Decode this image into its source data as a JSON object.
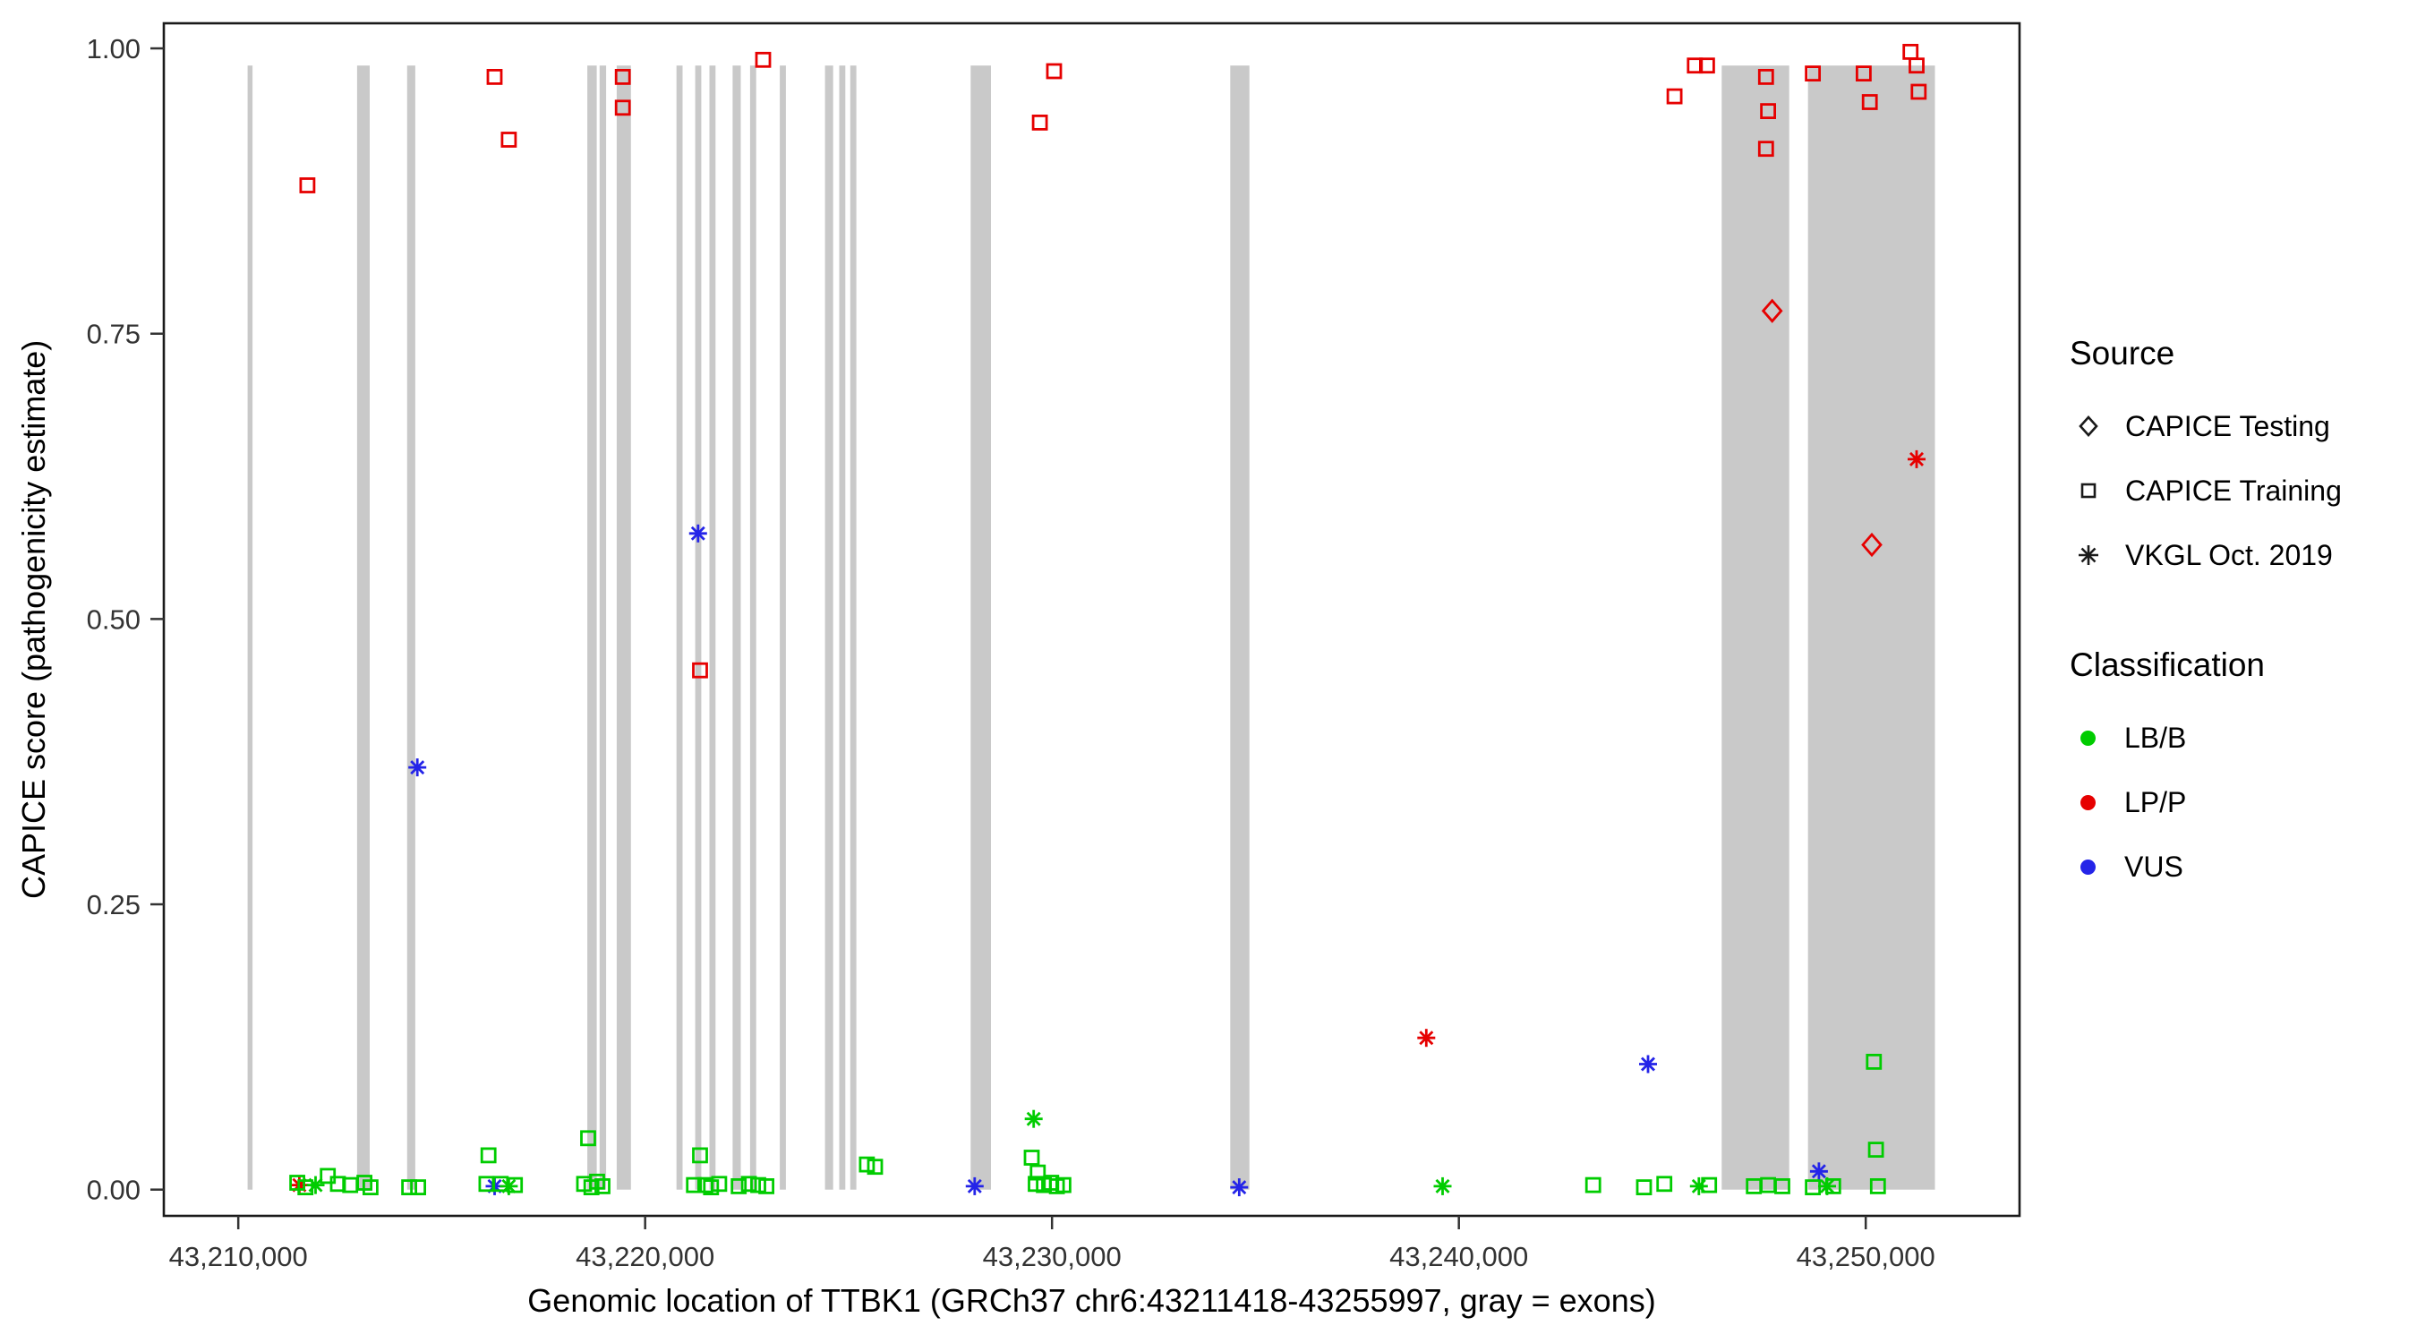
{
  "chart_data": {
    "type": "scatter",
    "title": "",
    "xlabel": "Genomic location of TTBK1 (GRCh37 chr6:43211418-43255997, gray = exons)",
    "ylabel": "CAPICE score (pathogenicity estimate)",
    "xlim": [
      43208170,
      43253780
    ],
    "ylim": [
      -0.023,
      1.022
    ],
    "grid": false,
    "panel_border_color": "#1a1a1a",
    "axis_tick_color": "#333333",
    "exon_color": "#c9c9c9",
    "exon_score_range": [
      0,
      0.985
    ],
    "x_ticks": [
      {
        "value": 43210000,
        "label": "43,210,000"
      },
      {
        "value": 43220000,
        "label": "43,220,000"
      },
      {
        "value": 43230000,
        "label": "43,230,000"
      },
      {
        "value": 43240000,
        "label": "43,240,000"
      },
      {
        "value": 43250000,
        "label": "43,250,000"
      }
    ],
    "y_ticks": [
      {
        "value": 0.0,
        "label": "0.00"
      },
      {
        "value": 0.25,
        "label": "0.25"
      },
      {
        "value": 0.5,
        "label": "0.50"
      },
      {
        "value": 0.75,
        "label": "0.75"
      },
      {
        "value": 1.0,
        "label": "1.00"
      }
    ],
    "exons": [
      [
        43210230,
        43210350
      ],
      [
        43212920,
        43213230
      ],
      [
        43214150,
        43214350
      ],
      [
        43218580,
        43218810
      ],
      [
        43218880,
        43219040
      ],
      [
        43219300,
        43219650
      ],
      [
        43220770,
        43220920
      ],
      [
        43221230,
        43221380
      ],
      [
        43221580,
        43221730
      ],
      [
        43222150,
        43222350
      ],
      [
        43222580,
        43222730
      ],
      [
        43223310,
        43223460
      ],
      [
        43224420,
        43224620
      ],
      [
        43224770,
        43224920
      ],
      [
        43225040,
        43225190
      ],
      [
        43228000,
        43228500
      ],
      [
        43234380,
        43234850
      ],
      [
        43246460,
        43248120
      ],
      [
        43248580,
        43251700
      ]
    ],
    "class_colors": {
      "LB/B": "#00cc00",
      "LP/P": "#e60000",
      "VUS": "#2424e8"
    },
    "legend": {
      "source": {
        "title": "Source",
        "items": [
          {
            "label": "CAPICE Testing",
            "shape": "diamond"
          },
          {
            "label": "CAPICE Training",
            "shape": "square"
          },
          {
            "label": "VKGL Oct. 2019",
            "shape": "asterisk"
          }
        ]
      },
      "classification": {
        "title": "Classification",
        "items": [
          {
            "label": "LB/B",
            "color_key": "LB/B"
          },
          {
            "label": "LP/P",
            "color_key": "LP/P"
          },
          {
            "label": "VUS",
            "color_key": "VUS"
          }
        ]
      }
    },
    "points": [
      {
        "x": 43211700,
        "y": 0.88,
        "class": "LP/P",
        "source": "CAPICE Training",
        "shape": "square"
      },
      {
        "x": 43216300,
        "y": 0.975,
        "class": "LP/P",
        "source": "CAPICE Training",
        "shape": "square"
      },
      {
        "x": 43216650,
        "y": 0.92,
        "class": "LP/P",
        "source": "CAPICE Training",
        "shape": "square"
      },
      {
        "x": 43219450,
        "y": 0.975,
        "class": "LP/P",
        "source": "CAPICE Training",
        "shape": "square"
      },
      {
        "x": 43219450,
        "y": 0.948,
        "class": "LP/P",
        "source": "CAPICE Training",
        "shape": "square"
      },
      {
        "x": 43222900,
        "y": 0.99,
        "class": "LP/P",
        "source": "CAPICE Training",
        "shape": "square"
      },
      {
        "x": 43221350,
        "y": 0.455,
        "class": "LP/P",
        "source": "CAPICE Training",
        "shape": "square"
      },
      {
        "x": 43229700,
        "y": 0.935,
        "class": "LP/P",
        "source": "CAPICE Training",
        "shape": "square"
      },
      {
        "x": 43230050,
        "y": 0.98,
        "class": "LP/P",
        "source": "CAPICE Training",
        "shape": "square"
      },
      {
        "x": 43245300,
        "y": 0.958,
        "class": "LP/P",
        "source": "CAPICE Training",
        "shape": "square"
      },
      {
        "x": 43245800,
        "y": 0.985,
        "class": "LP/P",
        "source": "CAPICE Training",
        "shape": "square"
      },
      {
        "x": 43246100,
        "y": 0.985,
        "class": "LP/P",
        "source": "CAPICE Training",
        "shape": "square"
      },
      {
        "x": 43247550,
        "y": 0.975,
        "class": "LP/P",
        "source": "CAPICE Training",
        "shape": "square"
      },
      {
        "x": 43247600,
        "y": 0.945,
        "class": "LP/P",
        "source": "CAPICE Training",
        "shape": "square"
      },
      {
        "x": 43247550,
        "y": 0.912,
        "class": "LP/P",
        "source": "CAPICE Training",
        "shape": "square"
      },
      {
        "x": 43248700,
        "y": 0.978,
        "class": "LP/P",
        "source": "CAPICE Training",
        "shape": "square"
      },
      {
        "x": 43249950,
        "y": 0.978,
        "class": "LP/P",
        "source": "CAPICE Training",
        "shape": "square"
      },
      {
        "x": 43250100,
        "y": 0.953,
        "class": "LP/P",
        "source": "CAPICE Training",
        "shape": "square"
      },
      {
        "x": 43251100,
        "y": 0.997,
        "class": "LP/P",
        "source": "CAPICE Training",
        "shape": "square"
      },
      {
        "x": 43251250,
        "y": 0.985,
        "class": "LP/P",
        "source": "CAPICE Training",
        "shape": "square"
      },
      {
        "x": 43251300,
        "y": 0.962,
        "class": "LP/P",
        "source": "CAPICE Training",
        "shape": "square"
      },
      {
        "x": 43247700,
        "y": 0.77,
        "class": "LP/P",
        "source": "CAPICE Testing",
        "shape": "diamond"
      },
      {
        "x": 43250150,
        "y": 0.565,
        "class": "LP/P",
        "source": "CAPICE Testing",
        "shape": "diamond"
      },
      {
        "x": 43214400,
        "y": 0.37,
        "class": "VUS",
        "source": "VKGL Oct. 2019",
        "shape": "asterisk"
      },
      {
        "x": 43221300,
        "y": 0.575,
        "class": "VUS",
        "source": "VKGL Oct. 2019",
        "shape": "asterisk"
      },
      {
        "x": 43251250,
        "y": 0.64,
        "class": "LP/P",
        "source": "VKGL Oct. 2019",
        "shape": "asterisk"
      },
      {
        "x": 43239200,
        "y": 0.133,
        "class": "LP/P",
        "source": "VKGL Oct. 2019",
        "shape": "asterisk"
      },
      {
        "x": 43211500,
        "y": 0.004,
        "class": "LP/P",
        "source": "VKGL Oct. 2019",
        "shape": "asterisk"
      },
      {
        "x": 43216300,
        "y": 0.003,
        "class": "VUS",
        "source": "VKGL Oct. 2019",
        "shape": "asterisk"
      },
      {
        "x": 43228100,
        "y": 0.003,
        "class": "VUS",
        "source": "VKGL Oct. 2019",
        "shape": "asterisk"
      },
      {
        "x": 43234600,
        "y": 0.002,
        "class": "VUS",
        "source": "VKGL Oct. 2019",
        "shape": "asterisk"
      },
      {
        "x": 43244650,
        "y": 0.11,
        "class": "VUS",
        "source": "VKGL Oct. 2019",
        "shape": "asterisk"
      },
      {
        "x": 43248850,
        "y": 0.016,
        "class": "VUS",
        "source": "VKGL Oct. 2019",
        "shape": "asterisk"
      },
      {
        "x": 43239600,
        "y": 0.003,
        "class": "LB/B",
        "source": "VKGL Oct. 2019",
        "shape": "asterisk"
      },
      {
        "x": 43211900,
        "y": 0.004,
        "class": "LB/B",
        "source": "VKGL Oct. 2019",
        "shape": "asterisk"
      },
      {
        "x": 43216650,
        "y": 0.003,
        "class": "LB/B",
        "source": "VKGL Oct. 2019",
        "shape": "asterisk"
      },
      {
        "x": 43229550,
        "y": 0.062,
        "class": "LB/B",
        "source": "VKGL Oct. 2019",
        "shape": "asterisk"
      },
      {
        "x": 43245900,
        "y": 0.003,
        "class": "LB/B",
        "source": "VKGL Oct. 2019",
        "shape": "asterisk"
      },
      {
        "x": 43249050,
        "y": 0.003,
        "class": "LB/B",
        "source": "VKGL Oct. 2019",
        "shape": "asterisk"
      },
      {
        "x": 43211450,
        "y": 0.006,
        "class": "LB/B",
        "source": "CAPICE Training",
        "shape": "square"
      },
      {
        "x": 43211650,
        "y": 0.002,
        "class": "LB/B",
        "source": "CAPICE Training",
        "shape": "square"
      },
      {
        "x": 43212200,
        "y": 0.012,
        "class": "LB/B",
        "source": "CAPICE Training",
        "shape": "square"
      },
      {
        "x": 43212450,
        "y": 0.005,
        "class": "LB/B",
        "source": "CAPICE Training",
        "shape": "square"
      },
      {
        "x": 43212750,
        "y": 0.004,
        "class": "LB/B",
        "source": "CAPICE Training",
        "shape": "square"
      },
      {
        "x": 43213100,
        "y": 0.006,
        "class": "LB/B",
        "source": "CAPICE Training",
        "shape": "square"
      },
      {
        "x": 43213250,
        "y": 0.002,
        "class": "LB/B",
        "source": "CAPICE Training",
        "shape": "square"
      },
      {
        "x": 43214200,
        "y": 0.002,
        "class": "LB/B",
        "source": "CAPICE Training",
        "shape": "square"
      },
      {
        "x": 43214420,
        "y": 0.002,
        "class": "LB/B",
        "source": "CAPICE Training",
        "shape": "square"
      },
      {
        "x": 43216150,
        "y": 0.03,
        "class": "LB/B",
        "source": "CAPICE Training",
        "shape": "square"
      },
      {
        "x": 43216100,
        "y": 0.005,
        "class": "LB/B",
        "source": "CAPICE Training",
        "shape": "square"
      },
      {
        "x": 43216450,
        "y": 0.005,
        "class": "LB/B",
        "source": "CAPICE Training",
        "shape": "square"
      },
      {
        "x": 43216800,
        "y": 0.004,
        "class": "LB/B",
        "source": "CAPICE Training",
        "shape": "square"
      },
      {
        "x": 43218600,
        "y": 0.045,
        "class": "LB/B",
        "source": "CAPICE Training",
        "shape": "square"
      },
      {
        "x": 43218500,
        "y": 0.005,
        "class": "LB/B",
        "source": "CAPICE Training",
        "shape": "square"
      },
      {
        "x": 43218680,
        "y": 0.002,
        "class": "LB/B",
        "source": "CAPICE Training",
        "shape": "square"
      },
      {
        "x": 43218820,
        "y": 0.007,
        "class": "LB/B",
        "source": "CAPICE Training",
        "shape": "square"
      },
      {
        "x": 43218950,
        "y": 0.003,
        "class": "LB/B",
        "source": "CAPICE Training",
        "shape": "square"
      },
      {
        "x": 43221350,
        "y": 0.03,
        "class": "LB/B",
        "source": "CAPICE Training",
        "shape": "square"
      },
      {
        "x": 43221200,
        "y": 0.004,
        "class": "LB/B",
        "source": "CAPICE Training",
        "shape": "square"
      },
      {
        "x": 43221480,
        "y": 0.004,
        "class": "LB/B",
        "source": "CAPICE Training",
        "shape": "square"
      },
      {
        "x": 43221620,
        "y": 0.002,
        "class": "LB/B",
        "source": "CAPICE Training",
        "shape": "square"
      },
      {
        "x": 43221820,
        "y": 0.005,
        "class": "LB/B",
        "source": "CAPICE Training",
        "shape": "square"
      },
      {
        "x": 43222300,
        "y": 0.003,
        "class": "LB/B",
        "source": "CAPICE Training",
        "shape": "square"
      },
      {
        "x": 43222550,
        "y": 0.005,
        "class": "LB/B",
        "source": "CAPICE Training",
        "shape": "square"
      },
      {
        "x": 43222780,
        "y": 0.004,
        "class": "LB/B",
        "source": "CAPICE Training",
        "shape": "square"
      },
      {
        "x": 43222980,
        "y": 0.003,
        "class": "LB/B",
        "source": "CAPICE Training",
        "shape": "square"
      },
      {
        "x": 43225450,
        "y": 0.022,
        "class": "LB/B",
        "source": "CAPICE Training",
        "shape": "square"
      },
      {
        "x": 43225650,
        "y": 0.02,
        "class": "LB/B",
        "source": "CAPICE Training",
        "shape": "square"
      },
      {
        "x": 43229500,
        "y": 0.028,
        "class": "LB/B",
        "source": "CAPICE Training",
        "shape": "square"
      },
      {
        "x": 43229650,
        "y": 0.015,
        "class": "LB/B",
        "source": "CAPICE Training",
        "shape": "square"
      },
      {
        "x": 43229600,
        "y": 0.005,
        "class": "LB/B",
        "source": "CAPICE Training",
        "shape": "square"
      },
      {
        "x": 43229800,
        "y": 0.004,
        "class": "LB/B",
        "source": "CAPICE Training",
        "shape": "square"
      },
      {
        "x": 43229980,
        "y": 0.006,
        "class": "LB/B",
        "source": "CAPICE Training",
        "shape": "square"
      },
      {
        "x": 43230120,
        "y": 0.003,
        "class": "LB/B",
        "source": "CAPICE Training",
        "shape": "square"
      },
      {
        "x": 43230280,
        "y": 0.004,
        "class": "LB/B",
        "source": "CAPICE Training",
        "shape": "square"
      },
      {
        "x": 43243300,
        "y": 0.004,
        "class": "LB/B",
        "source": "CAPICE Training",
        "shape": "square"
      },
      {
        "x": 43244550,
        "y": 0.002,
        "class": "LB/B",
        "source": "CAPICE Training",
        "shape": "square"
      },
      {
        "x": 43245050,
        "y": 0.005,
        "class": "LB/B",
        "source": "CAPICE Training",
        "shape": "square"
      },
      {
        "x": 43246150,
        "y": 0.004,
        "class": "LB/B",
        "source": "CAPICE Training",
        "shape": "square"
      },
      {
        "x": 43247250,
        "y": 0.003,
        "class": "LB/B",
        "source": "CAPICE Training",
        "shape": "square"
      },
      {
        "x": 43247600,
        "y": 0.004,
        "class": "LB/B",
        "source": "CAPICE Training",
        "shape": "square"
      },
      {
        "x": 43247950,
        "y": 0.003,
        "class": "LB/B",
        "source": "CAPICE Training",
        "shape": "square"
      },
      {
        "x": 43248700,
        "y": 0.002,
        "class": "LB/B",
        "source": "CAPICE Training",
        "shape": "square"
      },
      {
        "x": 43249200,
        "y": 0.003,
        "class": "LB/B",
        "source": "CAPICE Training",
        "shape": "square"
      },
      {
        "x": 43250200,
        "y": 0.112,
        "class": "LB/B",
        "source": "CAPICE Training",
        "shape": "square"
      },
      {
        "x": 43250250,
        "y": 0.035,
        "class": "LB/B",
        "source": "CAPICE Training",
        "shape": "square"
      },
      {
        "x": 43250300,
        "y": 0.003,
        "class": "LB/B",
        "source": "CAPICE Training",
        "shape": "square"
      }
    ]
  }
}
